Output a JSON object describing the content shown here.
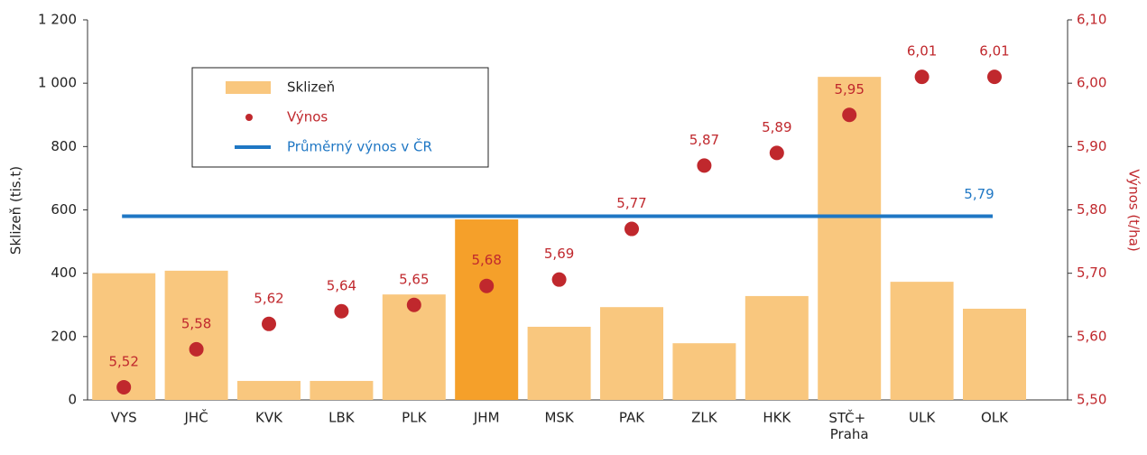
{
  "chart_data": {
    "type": "bar-dot",
    "categories": [
      "VYS",
      "JHČ",
      "KVK",
      "LBK",
      "PLK",
      "JHM",
      "MSK",
      "PAK",
      "ZLK",
      "HKK",
      "STČ+ Praha",
      "ULK",
      "OLK"
    ],
    "series": [
      {
        "name": "Sklizeň",
        "type": "bar",
        "color": "#f9c77e",
        "colors": [
          "#f9c77e",
          "#f9c77e",
          "#f9c77e",
          "#f9c77e",
          "#f9c77e",
          "#f5a02a",
          "#f9c77e",
          "#f9c77e",
          "#f9c77e",
          "#f9c77e",
          "#f9c77e",
          "#f9c77e",
          "#f9c77e"
        ],
        "values": [
          400,
          408,
          60,
          60,
          333,
          570,
          231,
          293,
          179,
          328,
          1020,
          373,
          288
        ]
      },
      {
        "name": "Výnos",
        "type": "dot",
        "axis": "y2",
        "color": "#c0282d",
        "values": [
          5.52,
          5.58,
          5.62,
          5.64,
          5.65,
          5.68,
          5.69,
          5.77,
          5.87,
          5.89,
          5.95,
          6.01,
          6.01
        ],
        "value_labels": [
          "5,52",
          "5,58",
          "5,62",
          "5,64",
          "5,65",
          "5,68",
          "5,69",
          "5,77",
          "5,87",
          "5,89",
          "5,95",
          "6,01",
          "6,01"
        ]
      },
      {
        "name": "Průměrný výnos v ČR",
        "type": "hline",
        "axis": "y2",
        "color": "#1f77c4",
        "value": 5.79,
        "value_label": "5,79"
      }
    ],
    "ylabel": "Sklizeň (tis.t)",
    "y2label": "Výnos (t/ha)",
    "ylim": [
      0,
      1200
    ],
    "yticks": [
      0,
      200,
      400,
      600,
      800,
      {
        "value": 1000,
        "label": "1 000"
      },
      {
        "value": 1200,
        "label": "1 200"
      }
    ],
    "y2lim": [
      5.5,
      6.1
    ],
    "y2ticks": [
      {
        "value": 5.5,
        "label": "5,50"
      },
      {
        "value": 5.6,
        "label": "5,60"
      },
      {
        "value": 5.7,
        "label": "5,70"
      },
      {
        "value": 5.8,
        "label": "5,80"
      },
      {
        "value": 5.9,
        "label": "5,90"
      },
      {
        "value": 6.0,
        "label": "6,00"
      },
      {
        "value": 6.1,
        "label": "6,10"
      }
    ],
    "y2color": "#c0282d",
    "legend": "upper left"
  }
}
